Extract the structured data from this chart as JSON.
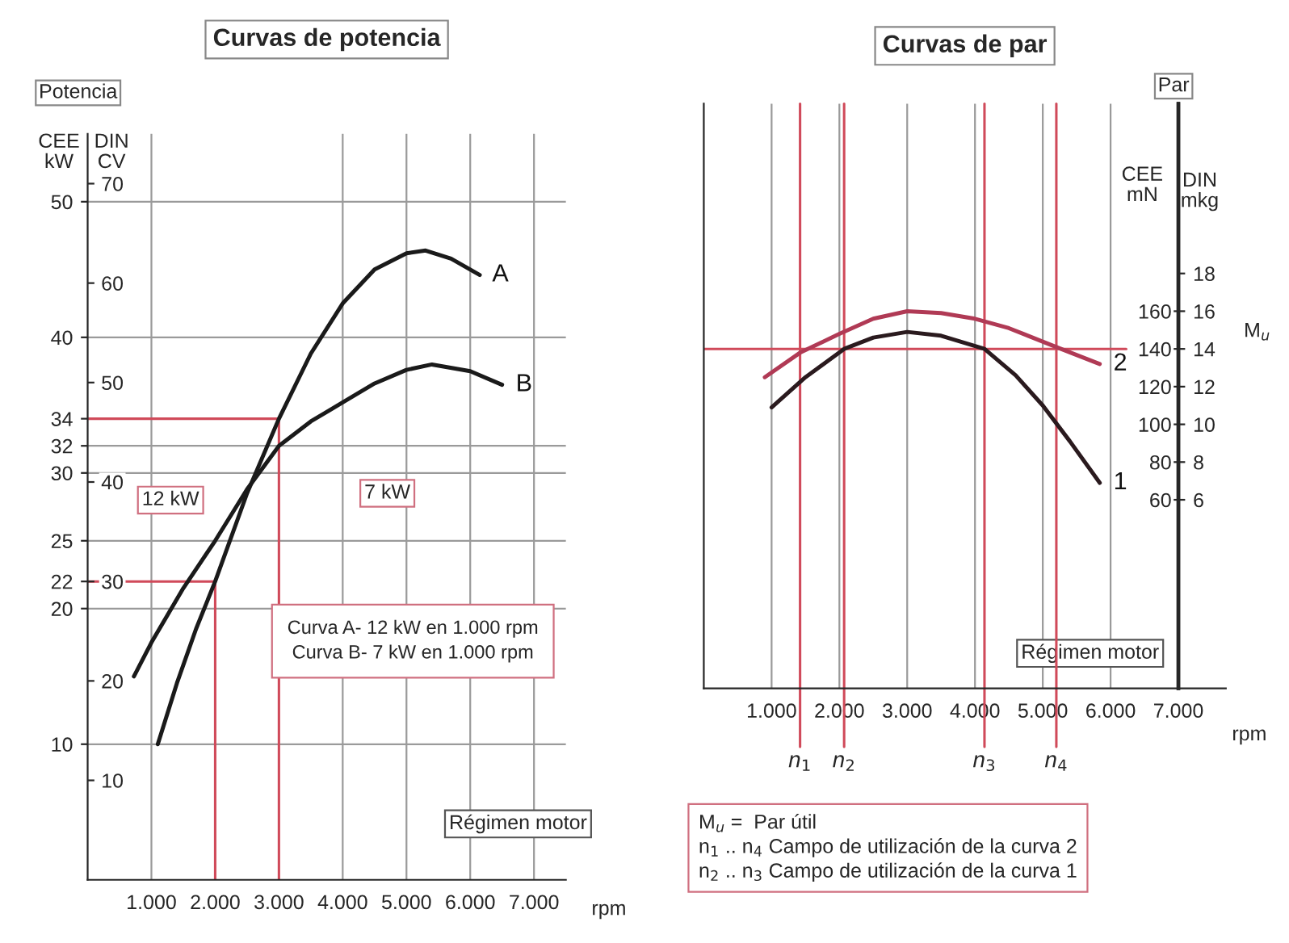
{
  "chart_data": [
    {
      "type": "line",
      "title": "Curvas de potencia",
      "xlabel": "Régimen motor",
      "ylabel": "Potencia",
      "annotations": [
        "CEE\nkW",
        "DIN\nCV",
        "Curva A- 12 kW en 1.000 rpm\nCurva B- 7 kW en 1.000 rpm",
        "rpm",
        {
          "text": "12 kW",
          "x": 1300,
          "y": 28
        },
        {
          "text": "7 kW",
          "x": 4700,
          "y": 28.5
        }
      ],
      "series": [
        {
          "name": "A",
          "color": "#1a1a1a",
          "x": [
            1100,
            1400,
            1700,
            2000,
            2500,
            3000,
            3500,
            4000,
            4500,
            5000,
            5300,
            5700,
            6150
          ],
          "values": [
            10,
            14.5,
            18.5,
            22,
            28.5,
            34,
            38.8,
            42.5,
            45,
            46.2,
            46.4,
            45.8,
            44.6
          ]
        },
        {
          "name": "B",
          "color": "#1a1a1a",
          "x": [
            725,
            1000,
            1500,
            2000,
            2500,
            3000,
            3500,
            4000,
            4500,
            5000,
            5400,
            6000,
            6500
          ],
          "values": [
            15,
            17.5,
            21.5,
            25,
            28.8,
            32,
            33.8,
            35.2,
            36.6,
            37.6,
            38,
            37.5,
            36.5
          ]
        }
      ],
      "xlim": [
        0,
        7500
      ],
      "xticks": [
        {
          "value": 1000,
          "label": "1.000"
        },
        {
          "value": 2000,
          "label": "2.000"
        },
        {
          "value": 3000,
          "label": "3.000"
        },
        {
          "value": 4000,
          "label": "4.000"
        },
        {
          "value": 5000,
          "label": "5.000"
        },
        {
          "value": 6000,
          "label": "6.000"
        },
        {
          "value": 7000,
          "label": "7.000"
        }
      ],
      "ylim": [
        0,
        55
      ],
      "yticks": [
        10,
        20,
        22,
        25,
        30,
        32,
        34,
        40,
        50
      ],
      "y2lim": [
        0,
        75
      ],
      "y2ticks": [
        10,
        20,
        30,
        40,
        50,
        60,
        70
      ],
      "ref_lines": [
        {
          "axis": "x",
          "value": 2000,
          "color": "#d04a5a"
        },
        {
          "axis": "x",
          "value": 3000,
          "color": "#d04a5a"
        },
        {
          "axis": "y",
          "value": 22,
          "color": "#d04a5a"
        },
        {
          "axis": "y",
          "value": 34,
          "color": "#d04a5a"
        }
      ],
      "grid": true,
      "legend": false,
      "marker": "none",
      "line_style": "solid"
    },
    {
      "type": "line",
      "title": "Curvas de par",
      "xlabel": "Régimen motor",
      "ylabel": "Par",
      "annotations": [
        "CEE\nmN",
        "DIN\nmkg",
        "M$_{u}$",
        "rpm",
        "M$_{u}$ =  Par útil\nn$_{1}$ .. n$_{4}$ Campo de utilización de la curva 2\nn$_{2}$ .. n$_{3}$ Campo de utilización de la curva 1"
      ],
      "series": [
        {
          "name": "1",
          "color": "#2a1a1e",
          "x": [
            1000,
            1500,
            2070,
            2500,
            3000,
            3500,
            4140,
            4600,
            5000,
            5400,
            5840
          ],
          "values": [
            109,
            125,
            140,
            146,
            149,
            147,
            140,
            126,
            110,
            91,
            69
          ]
        },
        {
          "name": "2",
          "color": "#b03a55",
          "x": [
            900,
            1420,
            2000,
            2500,
            3000,
            3500,
            4000,
            4500,
            5200,
            5840
          ],
          "values": [
            125,
            138,
            148,
            156,
            160,
            159,
            156,
            151,
            141,
            132
          ]
        }
      ],
      "xlim": [
        0,
        7700
      ],
      "xticks": [
        {
          "value": 1000,
          "label": "1.000"
        },
        {
          "value": 2000,
          "label": "2.000"
        },
        {
          "value": 3000,
          "label": "3.000"
        },
        {
          "value": 4000,
          "label": "4.000"
        },
        {
          "value": 5000,
          "label": "5.000"
        },
        {
          "value": 6000,
          "label": "6.000"
        },
        {
          "value": 7000,
          "label": "7.000"
        }
      ],
      "ylim": [
        -40,
        270
      ],
      "yticks": [
        60,
        80,
        100,
        120,
        140,
        160
      ],
      "y2lim": [
        -4,
        27
      ],
      "y2ticks": [
        6,
        8,
        10,
        12,
        14,
        16,
        18
      ],
      "ref_lines": [
        {
          "axis": "x",
          "value": 1420,
          "label": "n$_{1}$",
          "color": "#d04a5a"
        },
        {
          "axis": "x",
          "value": 2070,
          "label": "n$_{2}$",
          "color": "#d04a5a"
        },
        {
          "axis": "x",
          "value": 4140,
          "label": "n$_{3}$",
          "color": "#d04a5a"
        },
        {
          "axis": "x",
          "value": 5200,
          "label": "n$_{4}$",
          "color": "#d04a5a"
        },
        {
          "axis": "y",
          "value": 140,
          "color": "#d04a5a"
        }
      ],
      "grid": "x",
      "legend": false,
      "marker": "none",
      "line_style": "solid"
    }
  ]
}
